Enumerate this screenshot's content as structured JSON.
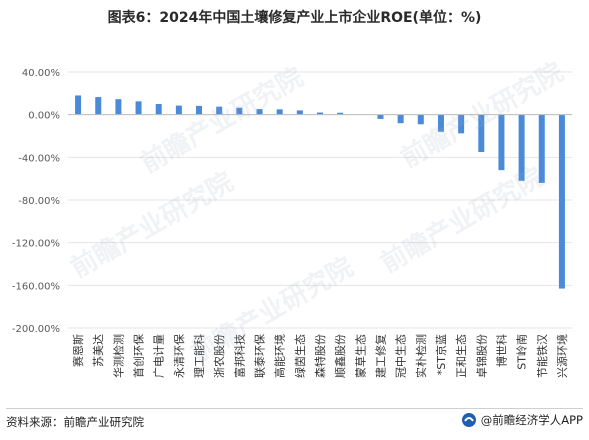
{
  "title": "图表6：2024年中国土壤修复产业上市企业ROE(单位：%)",
  "footer": {
    "source": "资料来源：前瞻产业研究院",
    "brand": "@前瞻经济学人APP"
  },
  "watermark": "前瞻产业研究院",
  "colors": {
    "bar": "#4a8ad9",
    "axis": "#bfbfbf",
    "grid": "#e4e4e4",
    "tick_text": "#595959"
  },
  "chart_data": {
    "type": "bar",
    "title": "图表6：2024年中国土壤修复产业上市企业ROE(单位：%)",
    "xlabel": "",
    "ylabel": "",
    "ylim": [
      -200,
      40
    ],
    "yticks": [
      40,
      0,
      -40,
      -80,
      -120,
      -160,
      -200
    ],
    "ytick_labels": [
      "40.00%",
      "0.00%",
      "-40.00%",
      "-80.00%",
      "-120.00%",
      "-160.00%",
      "-200.00%"
    ],
    "grid": true,
    "categories": [
      "赛恩斯",
      "苏美达",
      "华测检测",
      "首创环保",
      "广电计量",
      "永清环保",
      "理工能科",
      "浙农股份",
      "富邦科技",
      "联泰环保",
      "高能环境",
      "绿茵生态",
      "森特股份",
      "顺鑫股份",
      "蒙草生态",
      "建工修复",
      "冠中生态",
      "实朴检测",
      "*ST京蓝",
      "正和生态",
      "卓锦股份",
      "博世科",
      "ST岭南",
      "节能铁汉",
      "兴源环境"
    ],
    "values": [
      18.0,
      16.5,
      14.5,
      12.5,
      10.0,
      8.5,
      8.2,
      7.5,
      6.5,
      5.2,
      5.0,
      4.0,
      2.0,
      1.8,
      0.0,
      -4.0,
      -8.0,
      -9.0,
      -16.0,
      -17.5,
      -35.0,
      -52.0,
      -62.0,
      -64.0,
      -163.0
    ]
  }
}
